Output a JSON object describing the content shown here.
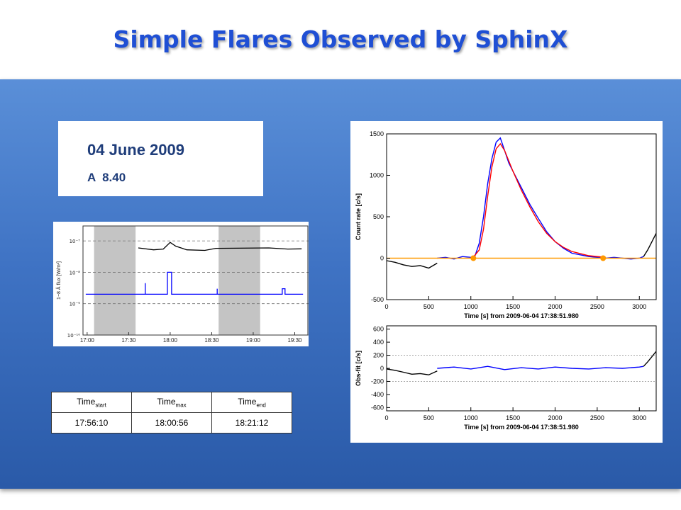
{
  "title": "Simple Flares Observed by SphinX",
  "info": {
    "date": "04 June 2009",
    "class": "A  8.40"
  },
  "table": {
    "headers": [
      {
        "base": "Time",
        "sub": "start"
      },
      {
        "base": "Time",
        "sub": "max"
      },
      {
        "base": "Time",
        "sub": "end"
      }
    ],
    "values": [
      "17:56:10",
      "18:00:56",
      "18:21:12"
    ]
  },
  "chart_data": [
    {
      "type": "line",
      "ylabel": "1−8 Å flux  [W/m²]",
      "yscale": "log",
      "ylim": [
        1e-10,
        3e-07
      ],
      "y_ticks": [
        "10⁻¹⁰",
        "10⁻⁹",
        "10⁻⁸",
        "10⁻⁷"
      ],
      "x_ticks": [
        "17:00",
        "17:30",
        "18:00",
        "18:30",
        "19:00",
        "19:30"
      ],
      "shaded_intervals": [
        [
          "17:05",
          "17:35"
        ],
        [
          "18:35",
          "19:05"
        ]
      ],
      "series": [
        {
          "color": "#000000",
          "points": [
            [
              "17:37",
              6e-08
            ],
            [
              "17:48",
              5.2e-08
            ],
            [
              "17:55",
              5.5e-08
            ],
            [
              "18:00",
              9e-08
            ],
            [
              "18:04",
              6.8e-08
            ],
            [
              "18:12",
              5.2e-08
            ],
            [
              "18:25",
              5e-08
            ],
            [
              "18:33",
              5.8e-08
            ],
            [
              "19:11",
              6e-08
            ],
            [
              "19:25",
              5.5e-08
            ],
            [
              "19:35",
              5.6e-08
            ]
          ]
        },
        {
          "color": "#0000ff",
          "points": [
            [
              "16:59",
              2e-09
            ],
            [
              "17:42",
              2e-09
            ],
            [
              "17:42",
              4.5e-09
            ],
            [
              "17:42",
              2e-09
            ],
            [
              "17:58",
              2e-09
            ],
            [
              "17:58",
              1e-08
            ],
            [
              "18:01",
              1e-08
            ],
            [
              "18:01",
              2e-09
            ],
            [
              "18:34",
              2e-09
            ],
            [
              "18:34",
              3e-09
            ],
            [
              "18:34",
              2e-09
            ],
            [
              "19:21",
              2e-09
            ],
            [
              "19:21",
              3e-09
            ],
            [
              "19:23",
              3e-09
            ],
            [
              "19:23",
              2e-09
            ],
            [
              "19:36",
              2e-09
            ]
          ]
        }
      ]
    },
    {
      "type": "line",
      "ylabel": "Count rate [c/s]",
      "xlabel": "Time [s] from 2009-06-04 17:38:51.980",
      "xlim": [
        0,
        3200
      ],
      "ylim": [
        -500,
        1500
      ],
      "x_ticks": [
        0,
        500,
        1000,
        1500,
        2000,
        2500,
        3000
      ],
      "y_ticks": [
        -500,
        0,
        500,
        1000,
        1500
      ],
      "series": [
        {
          "color": "#000000",
          "x": [
            0,
            100,
            200,
            300,
            400,
            500,
            600
          ],
          "y": [
            -30,
            -50,
            -80,
            -100,
            -90,
            -120,
            -60
          ]
        },
        {
          "color": "#0000ff",
          "x": [
            600,
            700,
            800,
            900,
            1000,
            1050,
            1100,
            1150,
            1200,
            1250,
            1300,
            1350,
            1400,
            1450,
            1500,
            1600,
            1700,
            1800,
            1900,
            2000,
            2100,
            2200,
            2300,
            2400,
            2500,
            2600,
            2700,
            2800,
            2900,
            3000,
            3050
          ],
          "y": [
            0,
            10,
            -10,
            20,
            10,
            30,
            180,
            500,
            900,
            1200,
            1400,
            1450,
            1300,
            1150,
            1050,
            850,
            650,
            480,
            320,
            200,
            120,
            60,
            40,
            20,
            10,
            0,
            10,
            0,
            -10,
            0,
            20
          ]
        },
        {
          "color": "#000000",
          "x": [
            3050,
            3100,
            3150,
            3200
          ],
          "y": [
            20,
            100,
            200,
            300
          ]
        },
        {
          "color": "#ff0000",
          "x": [
            1020,
            1100,
            1150,
            1200,
            1250,
            1300,
            1350,
            1400,
            1500,
            1600,
            1700,
            1800,
            1900,
            2000,
            2100,
            2200,
            2400,
            2600
          ],
          "y": [
            0,
            100,
            350,
            750,
            1100,
            1320,
            1380,
            1300,
            1050,
            820,
            620,
            440,
            300,
            200,
            130,
            80,
            30,
            10
          ]
        },
        {
          "color": "#ff9900",
          "x": [
            0,
            3200
          ],
          "y": [
            0,
            0
          ]
        }
      ],
      "markers": {
        "color": "#ff9900",
        "x": [
          1030,
          2570
        ],
        "y": [
          0,
          0
        ]
      }
    },
    {
      "type": "line",
      "ylabel": "Obs-fit [c/s]",
      "xlabel": "Time [s] from 2009-06-04 17:38:51.980",
      "xlim": [
        0,
        3200
      ],
      "ylim": [
        -650,
        650
      ],
      "x_ticks": [
        0,
        500,
        1000,
        1500,
        2000,
        2500,
        3000
      ],
      "y_ticks": [
        -600,
        -400,
        -200,
        0,
        200,
        400,
        600
      ],
      "reference_lines": [
        -200,
        200
      ],
      "series": [
        {
          "color": "#000000",
          "x": [
            0,
            100,
            200,
            300,
            400,
            500,
            600
          ],
          "y": [
            -10,
            -30,
            -60,
            -90,
            -80,
            -100,
            -40
          ]
        },
        {
          "color": "#0000ff",
          "x": [
            600,
            800,
            1000,
            1200,
            1400,
            1600,
            1800,
            2000,
            2200,
            2400,
            2600,
            2800,
            3000,
            3050
          ],
          "y": [
            0,
            20,
            -10,
            30,
            -20,
            10,
            -10,
            20,
            0,
            -10,
            10,
            0,
            20,
            30
          ]
        },
        {
          "color": "#000000",
          "x": [
            3050,
            3100,
            3150,
            3200
          ],
          "y": [
            30,
            100,
            180,
            260
          ]
        }
      ]
    }
  ]
}
